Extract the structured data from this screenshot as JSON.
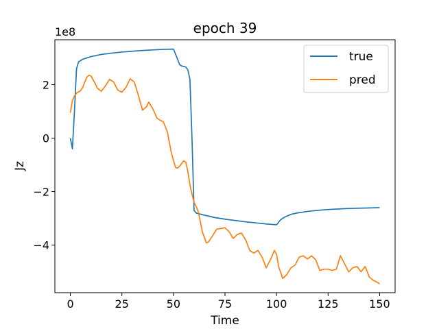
{
  "chart_data": {
    "type": "line",
    "title": "epoch 39",
    "xlabel": "Time",
    "ylabel": "Jz",
    "y_offset_text": "1e8",
    "xlim": [
      -7.5,
      157.5
    ],
    "ylim": [
      -5.78,
      3.68
    ],
    "y_scale_factor": 100000000,
    "xticks": [
      0,
      25,
      50,
      75,
      100,
      125,
      150
    ],
    "xtick_labels": [
      "0",
      "25",
      "50",
      "75",
      "100",
      "125",
      "150"
    ],
    "yticks": [
      -4,
      -2,
      0,
      2
    ],
    "ytick_labels": [
      "−4",
      "−2",
      "0",
      "2"
    ],
    "grid": false,
    "legend_position": "upper right",
    "series": [
      {
        "name": "true",
        "color": "#1f77b4",
        "x": [
          0,
          1,
          2,
          3,
          4,
          6,
          10,
          15,
          20,
          25,
          30,
          35,
          40,
          45,
          50,
          51,
          52,
          53,
          54,
          55,
          56,
          57,
          58,
          59,
          60,
          61,
          62,
          65,
          70,
          75,
          80,
          85,
          90,
          95,
          100,
          101,
          102,
          104,
          107,
          110,
          115,
          120,
          125,
          130,
          135,
          140,
          145,
          150
        ],
        "y": [
          0.0,
          -0.4,
          1.0,
          2.6,
          2.85,
          2.95,
          3.05,
          3.13,
          3.18,
          3.22,
          3.25,
          3.28,
          3.3,
          3.32,
          3.33,
          3.15,
          2.95,
          2.75,
          2.7,
          2.68,
          2.66,
          2.55,
          2.2,
          0.0,
          -2.7,
          -2.8,
          -2.82,
          -2.88,
          -2.97,
          -3.03,
          -3.08,
          -3.13,
          -3.17,
          -3.21,
          -3.24,
          -3.15,
          -3.05,
          -2.95,
          -2.85,
          -2.8,
          -2.74,
          -2.7,
          -2.67,
          -2.65,
          -2.63,
          -2.62,
          -2.61,
          -2.6
        ]
      },
      {
        "name": "pred",
        "color": "#ff7f0e",
        "x": [
          0,
          1,
          2,
          3,
          5,
          6,
          7,
          8,
          9,
          10,
          12,
          13,
          15,
          17,
          19,
          21,
          23,
          25,
          27,
          29,
          31,
          33,
          35,
          37,
          38,
          40,
          42,
          44,
          45,
          47,
          49,
          51,
          52,
          53,
          55,
          56,
          57,
          58,
          59,
          60,
          61,
          62,
          63,
          64,
          66,
          67,
          69,
          71,
          73,
          75,
          77,
          79,
          81,
          83,
          85,
          87,
          89,
          91,
          93,
          95,
          97,
          99,
          100,
          101,
          103,
          105,
          107,
          109,
          111,
          113,
          115,
          117,
          119,
          121,
          123,
          125,
          127,
          129,
          131,
          133,
          135,
          137,
          139,
          141,
          143,
          145,
          147,
          149,
          150
        ],
        "y": [
          0.95,
          1.4,
          1.58,
          1.68,
          1.78,
          1.9,
          2.1,
          2.28,
          2.35,
          2.33,
          2.05,
          1.88,
          1.75,
          1.95,
          2.2,
          2.1,
          1.8,
          1.72,
          1.9,
          2.22,
          2.1,
          1.6,
          1.05,
          1.18,
          1.35,
          1.1,
          0.75,
          0.65,
          0.62,
          0.25,
          -0.55,
          -1.1,
          -1.12,
          -1.05,
          -0.85,
          -0.9,
          -1.25,
          -1.75,
          -2.1,
          -2.4,
          -2.55,
          -2.75,
          -3.1,
          -3.5,
          -3.92,
          -3.88,
          -3.65,
          -3.4,
          -3.38,
          -3.35,
          -3.5,
          -3.75,
          -3.6,
          -3.55,
          -3.8,
          -4.2,
          -4.3,
          -4.2,
          -4.45,
          -4.85,
          -4.55,
          -4.2,
          -4.35,
          -4.8,
          -5.25,
          -5.1,
          -4.85,
          -4.75,
          -4.45,
          -4.4,
          -4.52,
          -4.4,
          -4.55,
          -4.95,
          -4.9,
          -4.9,
          -4.95,
          -4.9,
          -4.4,
          -4.7,
          -5.0,
          -4.85,
          -4.8,
          -5.0,
          -4.8,
          -5.2,
          -5.32,
          -5.4,
          -5.45
        ]
      }
    ]
  }
}
